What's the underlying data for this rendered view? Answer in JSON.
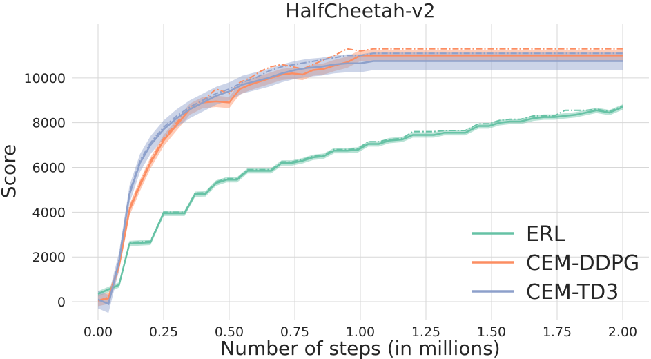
{
  "chart_data": {
    "type": "line",
    "title": "HalfCheetah-v2",
    "xlabel": "Number of steps (in millions)",
    "ylabel": "Score",
    "xlim": [
      -0.1,
      2.1
    ],
    "ylim": [
      -800,
      12400
    ],
    "xticks": [
      0.0,
      0.25,
      0.5,
      0.75,
      1.0,
      1.25,
      1.5,
      1.75,
      2.0
    ],
    "xtick_labels": [
      "0.00",
      "0.25",
      "0.50",
      "0.75",
      "1.00",
      "1.25",
      "1.50",
      "1.75",
      "2.00"
    ],
    "yticks": [
      0,
      2000,
      4000,
      6000,
      8000,
      10000
    ],
    "ytick_labels": [
      "0",
      "2000",
      "4000",
      "6000",
      "8000",
      "10000"
    ],
    "grid": true,
    "legend_position": "lower-right",
    "series": [
      {
        "name": "ERL",
        "color": "#66c2a5",
        "x": [
          0.0,
          0.04,
          0.08,
          0.12,
          0.2,
          0.25,
          0.33,
          0.37,
          0.41,
          0.45,
          0.49,
          0.53,
          0.57,
          0.62,
          0.66,
          0.7,
          0.74,
          0.78,
          0.82,
          0.86,
          0.9,
          0.95,
          0.99,
          1.03,
          1.07,
          1.11,
          1.16,
          1.2,
          1.24,
          1.28,
          1.32,
          1.36,
          1.4,
          1.45,
          1.49,
          1.53,
          1.57,
          1.61,
          1.66,
          1.7,
          1.74,
          1.78,
          1.82,
          1.86,
          1.9,
          1.95,
          2.0
        ],
        "mean": [
          350,
          550,
          750,
          2600,
          2650,
          3950,
          3950,
          4800,
          4820,
          5300,
          5450,
          5450,
          5850,
          5850,
          5850,
          6200,
          6200,
          6300,
          6450,
          6500,
          6750,
          6750,
          6780,
          7050,
          7050,
          7200,
          7250,
          7450,
          7450,
          7450,
          7550,
          7550,
          7550,
          7850,
          7850,
          8000,
          8050,
          8050,
          8200,
          8250,
          8250,
          8300,
          8350,
          8450,
          8550,
          8450,
          8700
        ],
        "best": [
          350,
          550,
          750,
          2650,
          2700,
          4000,
          4000,
          4850,
          4870,
          5350,
          5500,
          5500,
          5900,
          5900,
          5900,
          6250,
          6250,
          6350,
          6500,
          6550,
          6800,
          6800,
          6830,
          7150,
          7150,
          7250,
          7300,
          7600,
          7600,
          7600,
          7650,
          7650,
          7650,
          7950,
          7950,
          8100,
          8150,
          8150,
          8300,
          8300,
          8300,
          8550,
          8550,
          8550,
          8600,
          8500,
          8750
        ],
        "band": 120
      },
      {
        "name": "CEM-DDPG",
        "color": "#fc8d62",
        "x": [
          0.0,
          0.04,
          0.08,
          0.12,
          0.16,
          0.2,
          0.25,
          0.3,
          0.35,
          0.4,
          0.45,
          0.5,
          0.54,
          0.58,
          0.62,
          0.66,
          0.7,
          0.74,
          0.78,
          0.82,
          0.86,
          0.9,
          0.95,
          1.0,
          1.05,
          1.1,
          1.5,
          2.0
        ],
        "mean": [
          50,
          150,
          1600,
          4100,
          5200,
          6200,
          7200,
          7900,
          8600,
          8900,
          8950,
          8900,
          9500,
          9700,
          9850,
          10000,
          10150,
          10200,
          10150,
          10350,
          10400,
          10550,
          10700,
          11000,
          11000,
          11000,
          11000,
          11000
        ],
        "best": [
          50,
          200,
          1700,
          4200,
          5300,
          6300,
          7300,
          8000,
          8700,
          9000,
          9500,
          9300,
          9800,
          10000,
          10300,
          10500,
          10600,
          10500,
          10400,
          10600,
          10800,
          11000,
          11300,
          11200,
          11300,
          11300,
          11300,
          11300
        ],
        "band": 250
      },
      {
        "name": "CEM-TD3",
        "color": "#8da0cb",
        "x": [
          0.0,
          0.04,
          0.08,
          0.12,
          0.16,
          0.2,
          0.25,
          0.3,
          0.35,
          0.4,
          0.45,
          0.5,
          0.55,
          0.6,
          0.65,
          0.7,
          0.75,
          0.8,
          0.85,
          0.9,
          0.95,
          1.0,
          1.05,
          1.1,
          1.5,
          2.0
        ],
        "mean": [
          100,
          -100,
          1800,
          4800,
          6200,
          7000,
          7700,
          8200,
          8600,
          8900,
          9200,
          9400,
          9700,
          9850,
          10000,
          10200,
          10350,
          10450,
          10500,
          10600,
          10650,
          10650,
          10750,
          10750,
          10750,
          10750
        ],
        "best": [
          100,
          -100,
          1900,
          4900,
          6300,
          7100,
          7800,
          8300,
          8700,
          9000,
          9300,
          9500,
          9800,
          10000,
          10300,
          10500,
          10600,
          10700,
          10800,
          10900,
          11000,
          11000,
          11100,
          11100,
          11100,
          11100
        ],
        "band": 400
      }
    ]
  }
}
